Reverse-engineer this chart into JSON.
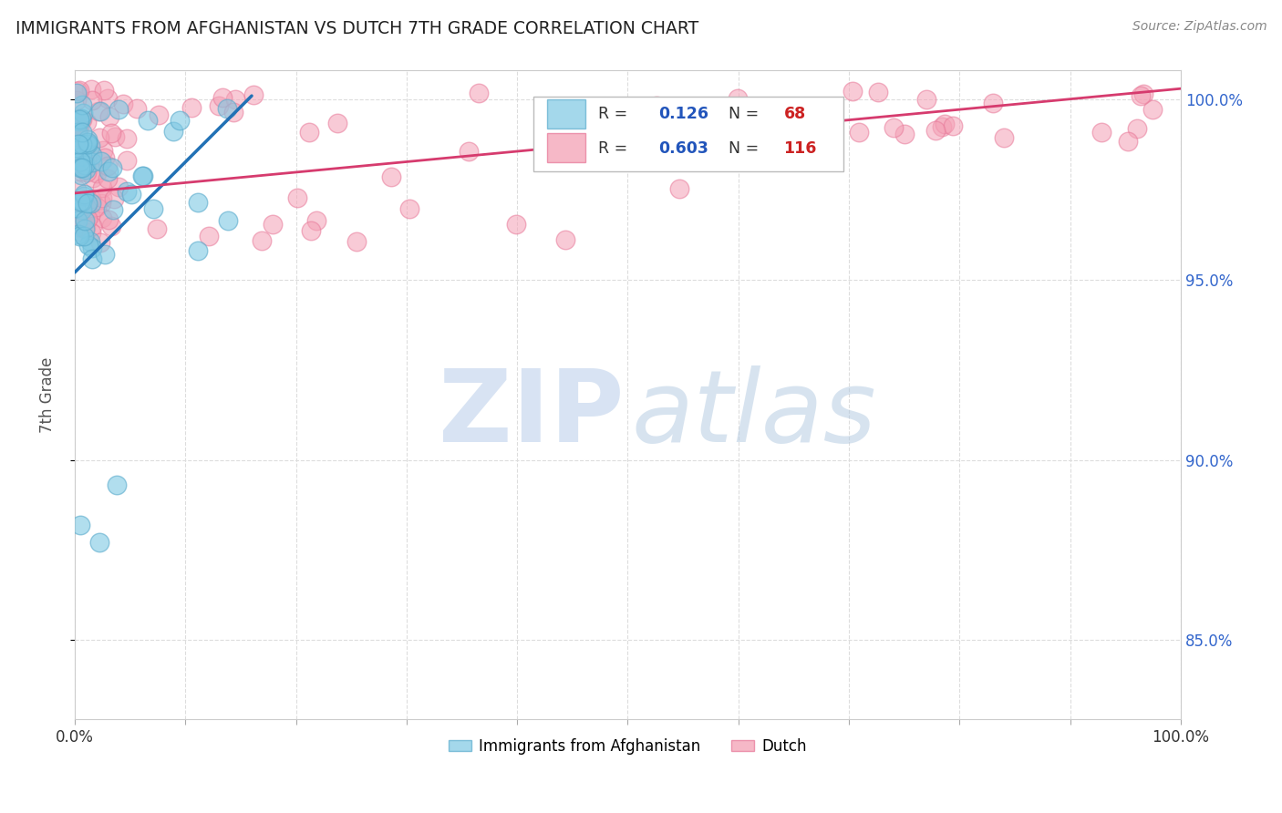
{
  "title": "IMMIGRANTS FROM AFGHANISTAN VS DUTCH 7TH GRADE CORRELATION CHART",
  "source": "Source: ZipAtlas.com",
  "ylabel": "7th Grade",
  "x_min": 0.0,
  "x_max": 1.0,
  "y_min": 0.828,
  "y_max": 1.008,
  "x_tick_positions": [
    0.0,
    0.1,
    0.2,
    0.3,
    0.4,
    0.5,
    0.6,
    0.7,
    0.8,
    0.9,
    1.0
  ],
  "x_tick_labels": [
    "0.0%",
    "",
    "",
    "",
    "",
    "",
    "",
    "",
    "",
    "",
    "100.0%"
  ],
  "y_tick_positions": [
    0.85,
    0.9,
    0.95,
    1.0
  ],
  "y_tick_labels": [
    "85.0%",
    "90.0%",
    "95.0%",
    "100.0%"
  ],
  "blue_color": "#7ec8e3",
  "blue_edge_color": "#5aabcc",
  "pink_color": "#f4a0b5",
  "pink_edge_color": "#e87a9a",
  "blue_line_color": "#2171b5",
  "pink_line_color": "#d63b6e",
  "title_color": "#222222",
  "source_color": "#888888",
  "ylabel_color": "#555555",
  "tick_color_right": "#3366cc",
  "grid_color": "#dddddd",
  "bg_color": "#ffffff",
  "legend_r1_val": "0.126",
  "legend_n1_val": "68",
  "legend_r2_val": "0.603",
  "legend_n2_val": "116",
  "legend_val_color": "#2255bb",
  "legend_n_color": "#cc2222",
  "watermark_zip_color": "#c8d8ee",
  "watermark_atlas_color": "#b0c8e0",
  "blue_line_x0": 0.0,
  "blue_line_x1": 0.16,
  "blue_line_y0": 0.952,
  "blue_line_y1": 1.001,
  "pink_line_x0": 0.0,
  "pink_line_x1": 1.0,
  "pink_line_y0": 0.974,
  "pink_line_y1": 1.003
}
